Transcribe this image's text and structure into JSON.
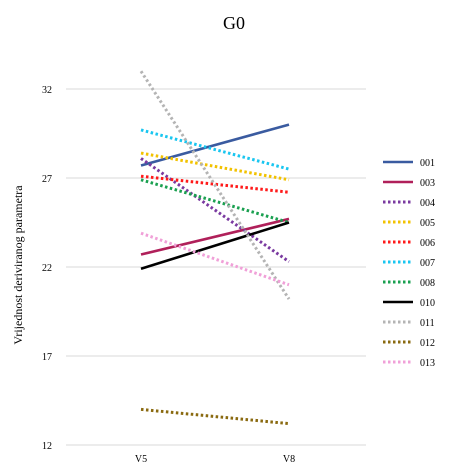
{
  "chart_data": {
    "type": "line",
    "title": "G0",
    "xlabel": "",
    "ylabel": "Vrijednost deriviranog parametra",
    "categories": [
      "V5",
      "V8"
    ],
    "ylim": [
      12,
      35
    ],
    "yticks": [
      "12",
      "17",
      "22",
      "27",
      "32"
    ],
    "grid": "horizontal",
    "legend_position": "right",
    "series": [
      {
        "name": "001",
        "values": [
          27.7,
          30.0
        ],
        "color": "#3a5ba0",
        "style": "solid"
      },
      {
        "name": "003",
        "values": [
          22.7,
          24.7
        ],
        "color": "#b0205a",
        "style": "solid"
      },
      {
        "name": "004",
        "values": [
          28.1,
          22.3
        ],
        "color": "#7a3aa0",
        "style": "dotted"
      },
      {
        "name": "005",
        "values": [
          28.4,
          26.9
        ],
        "color": "#f2c200",
        "style": "dotted"
      },
      {
        "name": "006",
        "values": [
          27.1,
          26.2
        ],
        "color": "#ff1a1a",
        "style": "dotted"
      },
      {
        "name": "007",
        "values": [
          29.7,
          27.5
        ],
        "color": "#19c6f0",
        "style": "dotted"
      },
      {
        "name": "008",
        "values": [
          26.9,
          24.5
        ],
        "color": "#1aa050",
        "style": "dotted"
      },
      {
        "name": "010",
        "values": [
          21.9,
          24.5
        ],
        "color": "#000000",
        "style": "solid"
      },
      {
        "name": "011",
        "values": [
          33.0,
          20.2
        ],
        "color": "#b4b4b4",
        "style": "dotted"
      },
      {
        "name": "012",
        "values": [
          14.0,
          13.2
        ],
        "color": "#8a6a10",
        "style": "dotted"
      },
      {
        "name": "013",
        "values": [
          23.9,
          21.0
        ],
        "color": "#f0a0d8",
        "style": "dotted"
      }
    ]
  }
}
